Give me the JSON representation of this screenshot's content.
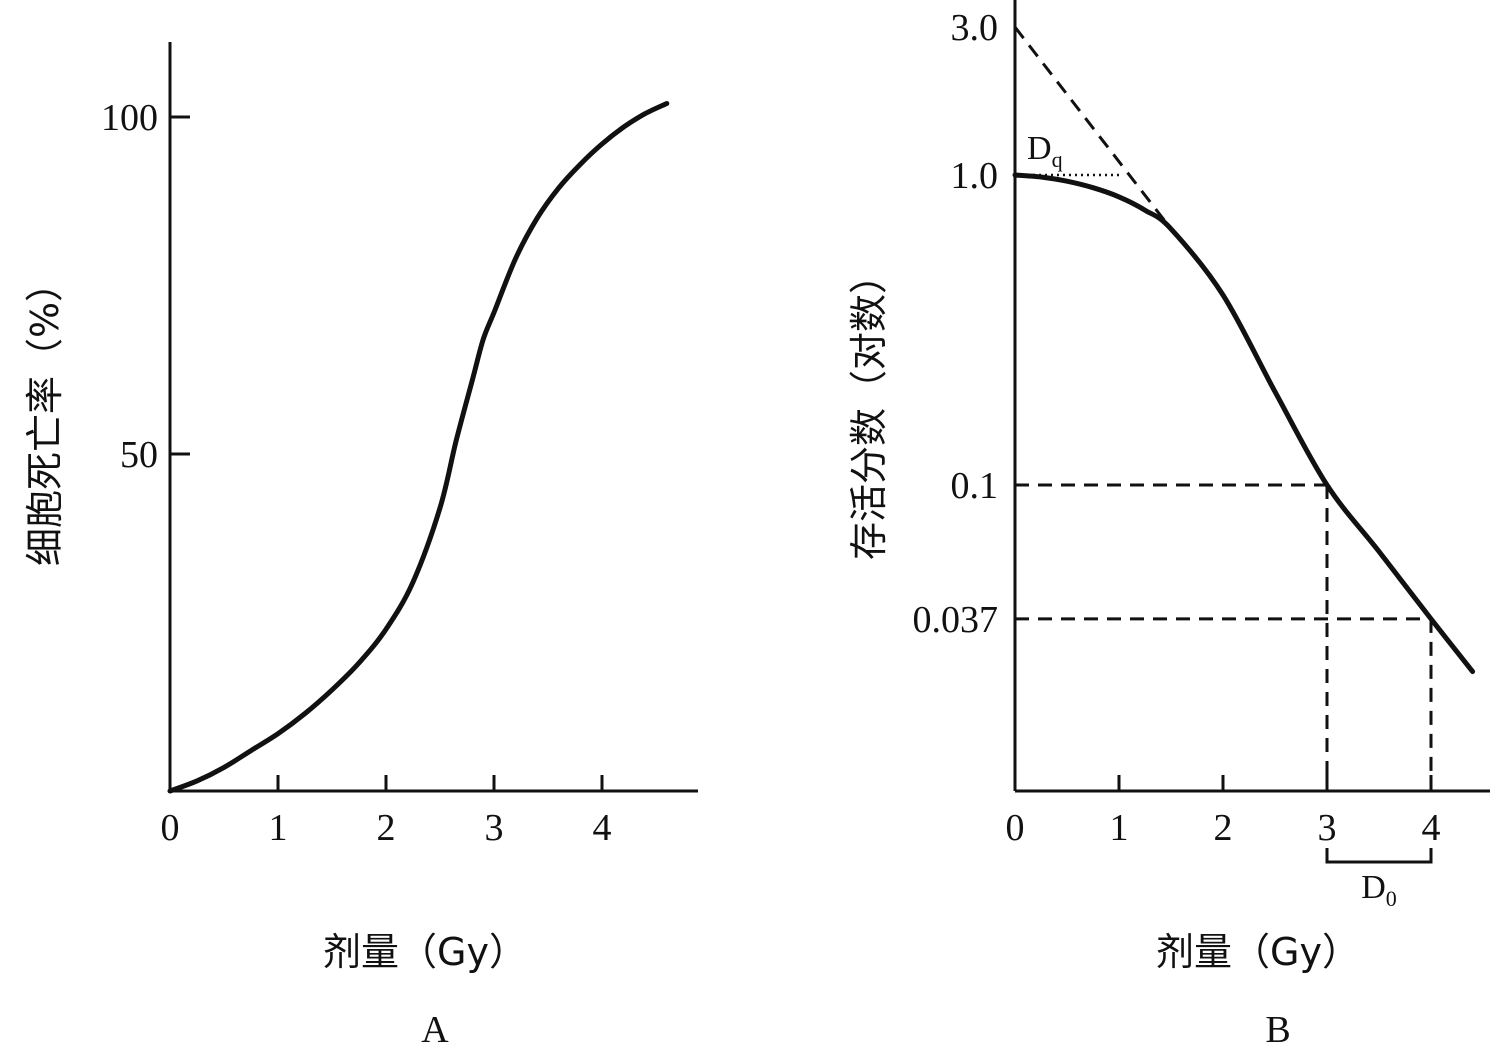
{
  "chart_data": [
    {
      "type": "line",
      "panel_label": "A",
      "xlabel": "剂量（Gy）",
      "ylabel": "细胞死亡率（%）",
      "xlim": [
        0,
        4.9
      ],
      "ylim": [
        0,
        110
      ],
      "x_ticks": [
        "0",
        "1",
        "2",
        "3",
        "4"
      ],
      "y_ticks": [
        "50",
        "100"
      ],
      "series": [
        {
          "x": [
            0,
            0.25,
            0.5,
            0.75,
            1.0,
            1.25,
            1.5,
            1.75,
            2.0,
            2.25,
            2.5,
            2.65,
            2.8,
            2.9,
            3.0,
            3.2,
            3.4,
            3.6,
            3.8,
            4.0,
            4.2,
            4.4,
            4.6
          ],
          "y": [
            0,
            1.5,
            3.5,
            6,
            8.5,
            11.5,
            15,
            19,
            24,
            31,
            42,
            52,
            61,
            67,
            71,
            79,
            85,
            89.5,
            93,
            96,
            98.5,
            100.5,
            102
          ]
        }
      ],
      "grid": false
    },
    {
      "type": "line",
      "panel_label": "B",
      "xlabel": "剂量（Gy）",
      "ylabel": "存活分数（对数）",
      "xlim": [
        0,
        4.6
      ],
      "y_scale": "log",
      "x_ticks": [
        "0",
        "1",
        "2",
        "3",
        "4"
      ],
      "y_ticks": [
        "3.0",
        "1.0",
        "0.1",
        "0.037"
      ],
      "series": [
        {
          "x": [
            0,
            0.25,
            0.5,
            0.75,
            1.0,
            1.25,
            1.5,
            2.0,
            2.5,
            3.0,
            3.5,
            4.0,
            4.4
          ],
          "y": [
            1.0,
            0.985,
            0.955,
            0.91,
            0.85,
            0.77,
            0.67,
            0.41,
            0.2,
            0.1,
            0.061,
            0.037,
            0.025
          ]
        }
      ],
      "extrapolation_line": {
        "x": [
          0,
          1.5
        ],
        "y": [
          3.0,
          0.67
        ]
      },
      "reference_lines": [
        {
          "y": 0.1,
          "x": 3.0
        },
        {
          "y": 0.037,
          "x": 4.0
        }
      ],
      "annotations": {
        "dq": {
          "label": "D",
          "sub": "q",
          "x_from": 0,
          "x_to": 1.0,
          "y": 1.0
        },
        "d0": {
          "label": "D",
          "sub": "0",
          "x_from": 3.0,
          "x_to": 4.0
        }
      },
      "grid": false
    }
  ]
}
